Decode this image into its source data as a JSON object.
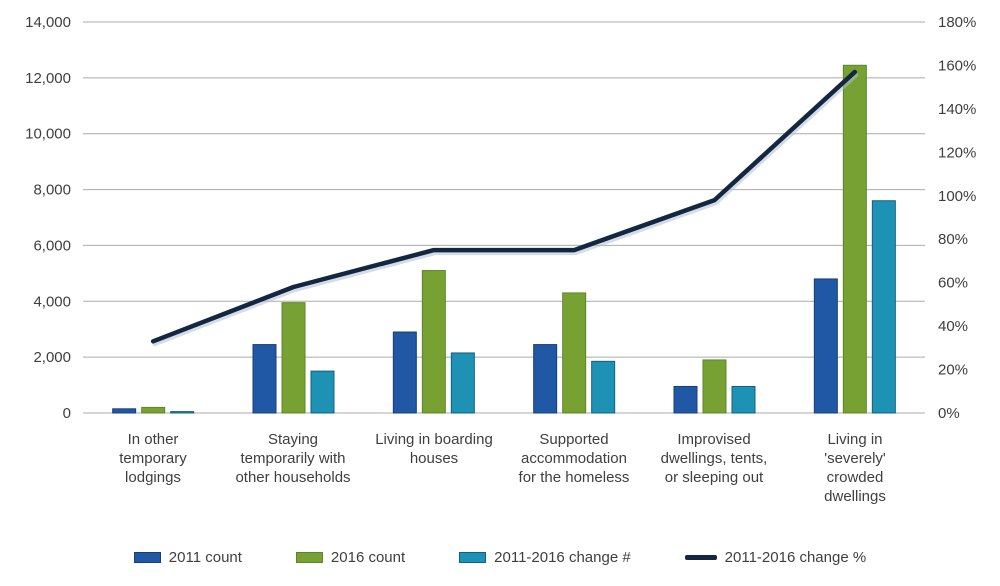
{
  "chart_data": {
    "type": "bar",
    "subtype": "grouped-bars-with-line-on-secondary-axis",
    "title": "",
    "categories": [
      "In other\ntemporary\nlodgings",
      "Staying\ntemporarily with\nother households",
      "Living in boarding\nhouses",
      "Supported\naccommodation\nfor the homeless",
      "Improvised\ndwellings, tents,\nor sleeping out",
      "Living in\n'severely'\ncrowded\ndwellings"
    ],
    "series": [
      {
        "name": "2011 count",
        "type": "bar",
        "axis": "left",
        "color": "#2158a5",
        "border": "#173f77",
        "values": [
          150,
          2450,
          2900,
          2450,
          950,
          4800
        ]
      },
      {
        "name": "2016 count",
        "type": "bar",
        "axis": "left",
        "color": "#77a233",
        "border": "#5c8528",
        "values": [
          200,
          3950,
          5100,
          4300,
          1900,
          12450
        ]
      },
      {
        "name": "2011-2016 change #",
        "type": "bar",
        "axis": "left",
        "color": "#1e92b4",
        "border": "#11607d",
        "values": [
          50,
          1500,
          2150,
          1850,
          950,
          7600
        ]
      },
      {
        "name": "2011-2016 change %",
        "type": "line",
        "axis": "right",
        "color": "#132743",
        "values": [
          33,
          58,
          75,
          75,
          98,
          157
        ]
      }
    ],
    "left_axis": {
      "min": 0,
      "max": 14000,
      "step": 2000,
      "tick_labels": [
        "0",
        "2,000",
        "4,000",
        "6,000",
        "8,000",
        "10,000",
        "12,000",
        "14,000"
      ]
    },
    "right_axis": {
      "min": 0,
      "max": 180,
      "step": 20,
      "tick_labels": [
        "0%",
        "20%",
        "40%",
        "60%",
        "80%",
        "100%",
        "120%",
        "140%",
        "160%",
        "180%"
      ]
    },
    "grid": "horizontal",
    "grid_color": "#ababab",
    "legend_position": "bottom",
    "text_color": "#3f3f3f"
  }
}
